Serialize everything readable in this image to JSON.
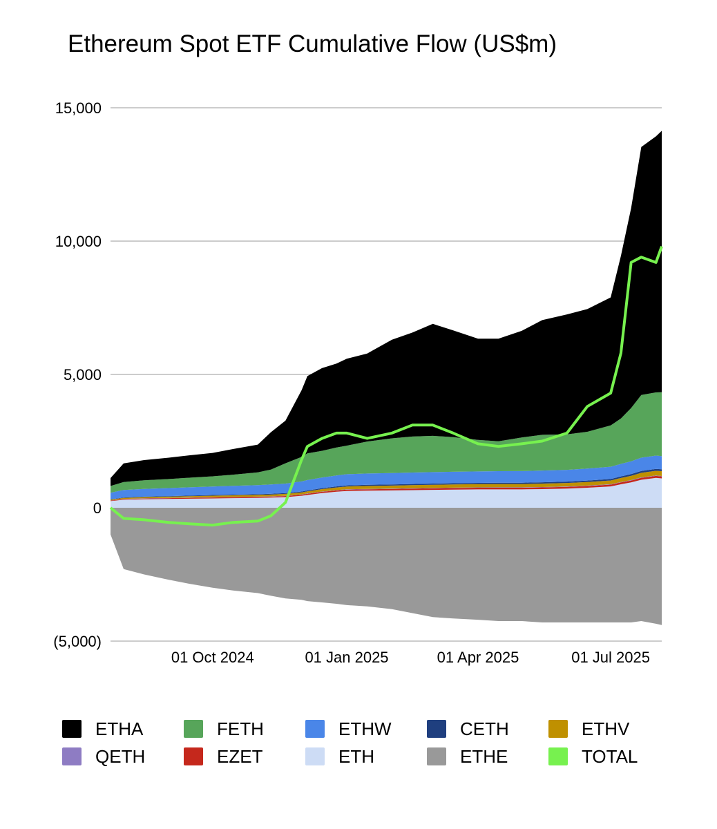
{
  "chart_data": {
    "type": "area",
    "title": "Ethereum Spot ETF Cumulative Flow (US$m)",
    "xlabel": "",
    "ylabel": "",
    "stacked": true,
    "ylim": [
      -5000,
      15000
    ],
    "yticks": [
      {
        "value": 15000,
        "label": "15,000"
      },
      {
        "value": 10000,
        "label": "10,000"
      },
      {
        "value": 5000,
        "label": "5,000"
      },
      {
        "value": 0,
        "label": "0"
      },
      {
        "value": -5000,
        "label": "(5,000)"
      }
    ],
    "xlim": [
      "2024-07-23",
      "2025-08-05"
    ],
    "xticks": [
      {
        "date": "2024-10-01",
        "label": "01 Oct 2024"
      },
      {
        "date": "2025-01-01",
        "label": "01 Jan 2025"
      },
      {
        "date": "2025-04-01",
        "label": "01 Apr 2025"
      },
      {
        "date": "2025-07-01",
        "label": "01 Jul 2025"
      }
    ],
    "grid": true,
    "legend_position": "bottom",
    "dates": [
      "2024-07-23",
      "2024-08-01",
      "2024-08-15",
      "2024-09-01",
      "2024-09-15",
      "2024-10-01",
      "2024-10-15",
      "2024-11-01",
      "2024-11-10",
      "2024-11-20",
      "2024-12-01",
      "2024-12-05",
      "2024-12-15",
      "2024-12-25",
      "2025-01-01",
      "2025-01-15",
      "2025-02-01",
      "2025-02-15",
      "2025-03-01",
      "2025-03-15",
      "2025-04-01",
      "2025-04-15",
      "2025-05-01",
      "2025-05-15",
      "2025-06-01",
      "2025-06-15",
      "2025-07-01",
      "2025-07-08",
      "2025-07-15",
      "2025-07-22",
      "2025-08-01",
      "2025-08-05"
    ],
    "series": [
      {
        "name": "ETHE",
        "color": "#999999",
        "values": [
          -1000,
          -2300,
          -2500,
          -2700,
          -2850,
          -3000,
          -3100,
          -3200,
          -3300,
          -3400,
          -3450,
          -3500,
          -3550,
          -3600,
          -3650,
          -3700,
          -3800,
          -3950,
          -4100,
          -4150,
          -4200,
          -4250,
          -4250,
          -4300,
          -4300,
          -4300,
          -4300,
          -4300,
          -4300,
          -4250,
          -4350,
          -4400
        ]
      },
      {
        "name": "ETH",
        "color": "#cddcf5",
        "values": [
          250,
          300,
          320,
          330,
          340,
          350,
          360,
          370,
          380,
          400,
          450,
          480,
          550,
          600,
          630,
          640,
          650,
          660,
          670,
          680,
          690,
          690,
          690,
          700,
          720,
          750,
          800,
          880,
          950,
          1050,
          1120,
          1100
        ]
      },
      {
        "name": "EZET",
        "color": "#c5281c",
        "values": [
          20,
          25,
          28,
          30,
          32,
          35,
          36,
          38,
          38,
          40,
          42,
          45,
          48,
          50,
          52,
          55,
          56,
          58,
          60,
          60,
          60,
          62,
          62,
          64,
          65,
          66,
          68,
          70,
          72,
          74,
          75,
          76
        ]
      },
      {
        "name": "QETH",
        "color": "#8e7cc3",
        "values": [
          5,
          6,
          7,
          8,
          8,
          9,
          9,
          10,
          10,
          10,
          11,
          11,
          12,
          12,
          12,
          13,
          13,
          13,
          13,
          14,
          14,
          14,
          14,
          14,
          15,
          15,
          15,
          16,
          16,
          16,
          17,
          17
        ]
      },
      {
        "name": "ETHV",
        "color": "#bf9000",
        "values": [
          30,
          40,
          45,
          50,
          55,
          60,
          62,
          65,
          68,
          70,
          75,
          80,
          90,
          100,
          105,
          110,
          112,
          115,
          118,
          120,
          122,
          124,
          125,
          128,
          130,
          135,
          140,
          150,
          160,
          170,
          175,
          180
        ]
      },
      {
        "name": "CETH",
        "color": "#1f3f7f",
        "values": [
          10,
          15,
          18,
          20,
          22,
          24,
          25,
          26,
          27,
          28,
          30,
          32,
          35,
          38,
          40,
          42,
          43,
          44,
          45,
          46,
          47,
          48,
          49,
          50,
          52,
          54,
          56,
          60,
          64,
          68,
          70,
          72
        ]
      },
      {
        "name": "ETHW",
        "color": "#4a86e8",
        "values": [
          250,
          280,
          290,
          300,
          310,
          320,
          330,
          340,
          350,
          360,
          380,
          390,
          400,
          410,
          420,
          425,
          430,
          430,
          430,
          430,
          430,
          435,
          435,
          440,
          440,
          450,
          460,
          470,
          480,
          500,
          500,
          490
        ]
      },
      {
        "name": "FETH",
        "color": "#57a55a",
        "values": [
          250,
          300,
          320,
          340,
          360,
          380,
          420,
          480,
          560,
          760,
          920,
          1000,
          1000,
          1050,
          1070,
          1200,
          1300,
          1350,
          1360,
          1300,
          1180,
          1120,
          1260,
          1340,
          1330,
          1380,
          1550,
          1700,
          2000,
          2350,
          2370,
          2400
        ]
      },
      {
        "name": "ETHA",
        "color": "#000000",
        "values": [
          300,
          700,
          760,
          800,
          840,
          880,
          960,
          1040,
          1400,
          1600,
          2500,
          2900,
          3100,
          3150,
          3260,
          3300,
          3700,
          3900,
          4200,
          4000,
          3800,
          3850,
          4000,
          4300,
          4500,
          4600,
          4800,
          6100,
          7500,
          9300,
          9600,
          9800
        ]
      }
    ],
    "total": {
      "name": "TOTAL",
      "color": "#77f14f",
      "values": [
        0,
        -400,
        -450,
        -550,
        -600,
        -650,
        -550,
        -500,
        -300,
        200,
        1800,
        2300,
        2600,
        2800,
        2800,
        2600,
        2800,
        3100,
        3100,
        2800,
        2400,
        2300,
        2400,
        2500,
        2800,
        3800,
        4300,
        5800,
        9200,
        9400,
        9200,
        9800
      ]
    },
    "legend": [
      {
        "label": "ETHA",
        "color": "#000000"
      },
      {
        "label": "FETH",
        "color": "#57a55a"
      },
      {
        "label": "ETHW",
        "color": "#4a86e8"
      },
      {
        "label": "CETH",
        "color": "#1f3f7f"
      },
      {
        "label": "ETHV",
        "color": "#bf9000"
      },
      {
        "label": "QETH",
        "color": "#8e7cc3"
      },
      {
        "label": "EZET",
        "color": "#c5281c"
      },
      {
        "label": "ETH",
        "color": "#cddcf5"
      },
      {
        "label": "ETHE",
        "color": "#999999"
      },
      {
        "label": "TOTAL",
        "color": "#77f14f"
      }
    ]
  }
}
